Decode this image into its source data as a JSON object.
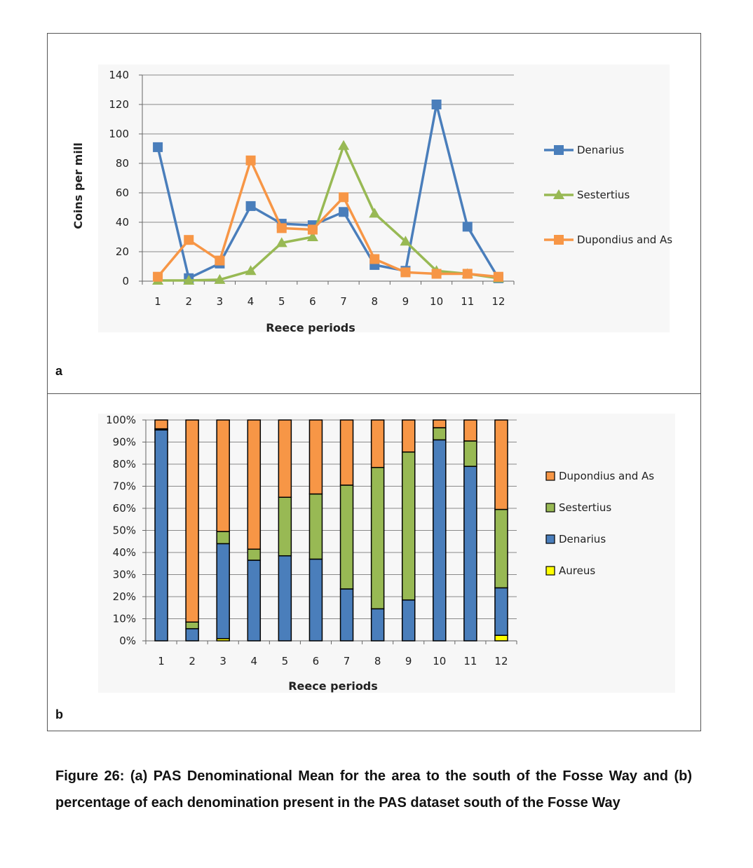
{
  "caption": "Figure 26: (a) PAS Denominational Mean for the area to the south of the Fosse Way and (b) percentage of each denomination present in the PAS dataset south of the Fosse Way",
  "chart_data": [
    {
      "panel_label": "a",
      "type": "line",
      "xlabel": "Reece periods",
      "ylabel": "Coins per mill",
      "ylim": [
        0,
        140
      ],
      "yticks": [
        0,
        20,
        40,
        60,
        80,
        100,
        120,
        140
      ],
      "x": [
        1,
        2,
        3,
        4,
        5,
        6,
        7,
        8,
        9,
        10,
        11,
        12
      ],
      "grid": true,
      "legend_position": "right",
      "series": [
        {
          "name": "Denarius",
          "color": "#4a7ebb",
          "marker": "square",
          "values": [
            91,
            2,
            12,
            51,
            39,
            38,
            47,
            11,
            7,
            120,
            37,
            2
          ]
        },
        {
          "name": "Sestertius",
          "color": "#98b954",
          "marker": "triangle",
          "values": [
            0.5,
            0.5,
            1,
            7,
            26,
            30,
            92,
            46,
            27,
            7,
            5,
            2
          ]
        },
        {
          "name": "Dupondius and As",
          "color": "#f79646",
          "marker": "square",
          "values": [
            3,
            28,
            14,
            82,
            36,
            35,
            57,
            15,
            6,
            5,
            5,
            3
          ]
        }
      ]
    },
    {
      "panel_label": "b",
      "type": "bar",
      "stacked": "percent",
      "xlabel": "Reece periods",
      "ylabel": "",
      "ylim": [
        0,
        100
      ],
      "yticks": [
        "0%",
        "10%",
        "20%",
        "30%",
        "40%",
        "50%",
        "60%",
        "70%",
        "80%",
        "90%",
        "100%"
      ],
      "categories": [
        "1",
        "2",
        "3",
        "4",
        "5",
        "6",
        "7",
        "8",
        "9",
        "10",
        "11",
        "12"
      ],
      "grid": true,
      "legend_position": "right",
      "legend_order": [
        "Dupondius and As",
        "Sestertius",
        "Denarius",
        "Aureus"
      ],
      "series": [
        {
          "name": "Aureus",
          "color": "#ffff00",
          "values": [
            0,
            0,
            1,
            0,
            0,
            0,
            0,
            0,
            0,
            0,
            0,
            2.5
          ]
        },
        {
          "name": "Denarius",
          "color": "#4a7ebb",
          "values": [
            95.5,
            5.5,
            43,
            36.5,
            38.5,
            37,
            23.5,
            14.5,
            18.5,
            91,
            79,
            21.5
          ]
        },
        {
          "name": "Sestertius",
          "color": "#98b954",
          "values": [
            0.5,
            3,
            5.5,
            5,
            26.5,
            29.5,
            47,
            64,
            67,
            5.5,
            11.5,
            35.5
          ]
        },
        {
          "name": "Dupondius and As",
          "color": "#f79646",
          "values": [
            4,
            91.5,
            50.5,
            58.5,
            35,
            33.5,
            29.5,
            21.5,
            14.5,
            3.5,
            9.5,
            40.5
          ]
        }
      ]
    }
  ]
}
